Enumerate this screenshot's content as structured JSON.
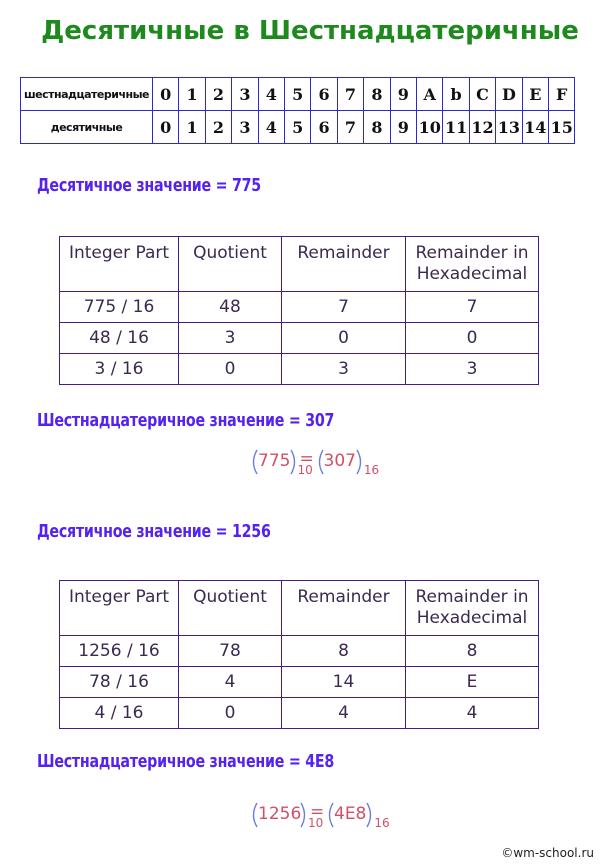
{
  "title": "Десятичные в Шестнадцатеричные",
  "lookup": {
    "rows": [
      [
        "шестнадцатеричные",
        "0",
        "1",
        "2",
        "3",
        "4",
        "5",
        "6",
        "7",
        "8",
        "9",
        "A",
        "b",
        "C",
        "D",
        "E",
        "F"
      ],
      [
        "десятичные",
        "0",
        "1",
        "2",
        "3",
        "4",
        "5",
        "6",
        "7",
        "8",
        "9",
        "10",
        "11",
        "12",
        "13",
        "14",
        "15"
      ]
    ]
  },
  "examples": [
    {
      "heading": "Десятичное значение = 775",
      "table": {
        "header": [
          "Integer Part",
          "Quotient",
          "Remainder",
          "Remainder in Hexadecimal"
        ],
        "rows": [
          [
            "775 / 16",
            "48",
            "7",
            "7"
          ],
          [
            "48 / 16",
            "3",
            "0",
            "0"
          ],
          [
            "3 / 16",
            "0",
            "3",
            "3"
          ]
        ]
      },
      "result": "Шестнадцатеричное значение = 307",
      "formula": {
        "left": "775",
        "left_base": "10",
        "equals": "=",
        "right": "307",
        "right_base": "16"
      }
    },
    {
      "heading": "Десятичное значение = 1256",
      "table": {
        "header": [
          "Integer Part",
          "Quotient",
          "Remainder",
          "Remainder in Hexadecimal"
        ],
        "rows": [
          [
            "1256 / 16",
            "78",
            "8",
            "8"
          ],
          [
            "78 / 16",
            "4",
            "14",
            "E"
          ],
          [
            "4 / 16",
            "0",
            "4",
            "4"
          ]
        ]
      },
      "result": "Шестнадцатеричное значение = 4E8",
      "formula": {
        "left": "1256",
        "left_base": "10",
        "equals": "=",
        "right": "4E8",
        "right_base": "16"
      }
    }
  ],
  "footer": "©wm-school.ru"
}
